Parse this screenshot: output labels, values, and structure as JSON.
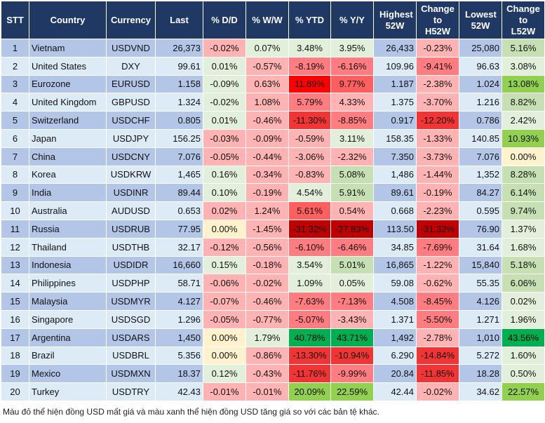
{
  "headers": [
    "STT",
    "Country",
    "Currency",
    "Last",
    "% D/D",
    "% W/W",
    "% YTD",
    "% Y/Y",
    "Highest 52W",
    "Change to H52W",
    "Lowest 52W",
    "Change to L52W"
  ],
  "zebra": {
    "odd": "#b4c6e7",
    "even": "#ddebf7"
  },
  "palette": {
    "p": "#ffb3b3",
    "g": "#e2efda",
    "G": "#c6e0b4",
    "L": "#92d050",
    "D": "#00b050",
    "y": "#fff2cc",
    "s": "#ff7c80",
    "m": "#ff5f5f",
    "r": "#f23434",
    "X": "#ff0000",
    "K": "#c00000"
  },
  "rows": [
    {
      "stt": "1",
      "country": "Vietnam",
      "currency": "USDVND",
      "last": "26,373",
      "dd": "-0.02%",
      "ww": "0.07%",
      "ytd": "3.48%",
      "yy": "3.95%",
      "high": "26,433",
      "ch_high": "-0.23%",
      "low": "25,080",
      "ch_low": "5.16%",
      "colors": [
        "p",
        "g",
        "g",
        "g",
        "p",
        "G"
      ]
    },
    {
      "stt": "2",
      "country": "United States",
      "currency": "DXY",
      "last": "99.61",
      "dd": "0.01%",
      "ww": "-0.57%",
      "ytd": "-8.19%",
      "yy": "-6.16%",
      "high": "109.96",
      "ch_high": "-9.41%",
      "low": "96.63",
      "ch_low": "3.08%",
      "colors": [
        "g",
        "p",
        "s",
        "s",
        "s",
        "g"
      ]
    },
    {
      "stt": "3",
      "country": "Eurozone",
      "currency": "EURUSD",
      "last": "1.158",
      "dd": "-0.09%",
      "ww": "0.63%",
      "ytd": "11.89%",
      "yy": "9.77%",
      "high": "1.187",
      "ch_high": "-2.38%",
      "low": "1.024",
      "ch_low": "13.08%",
      "colors": [
        "g",
        "p",
        "X",
        "m",
        "p",
        "L"
      ]
    },
    {
      "stt": "4",
      "country": "United Kingdom",
      "currency": "GBPUSD",
      "last": "1.324",
      "dd": "-0.02%",
      "ww": "1.08%",
      "ytd": "5.79%",
      "yy": "4.33%",
      "high": "1.375",
      "ch_high": "-3.70%",
      "low": "1.216",
      "ch_low": "8.82%",
      "colors": [
        "g",
        "p",
        "s",
        "p",
        "p",
        "G"
      ]
    },
    {
      "stt": "5",
      "country": "Switzerland",
      "currency": "USDCHF",
      "last": "0.805",
      "dd": "0.01%",
      "ww": "-0.46%",
      "ytd": "-11.30%",
      "yy": "-8.85%",
      "high": "0.917",
      "ch_high": "-12.20%",
      "low": "0.786",
      "ch_low": "2.42%",
      "colors": [
        "g",
        "p",
        "r",
        "s",
        "r",
        "g"
      ]
    },
    {
      "stt": "6",
      "country": "Japan",
      "currency": "USDJPY",
      "last": "156.25",
      "dd": "-0.03%",
      "ww": "-0.09%",
      "ytd": "-0.59%",
      "yy": "3.11%",
      "high": "158.35",
      "ch_high": "-1.33%",
      "low": "140.85",
      "ch_low": "10.93%",
      "colors": [
        "p",
        "p",
        "p",
        "g",
        "p",
        "L"
      ]
    },
    {
      "stt": "7",
      "country": "China",
      "currency": "USDCNY",
      "last": "7.076",
      "dd": "-0.05%",
      "ww": "-0.44%",
      "ytd": "-3.06%",
      "yy": "-2.32%",
      "high": "7.350",
      "ch_high": "-3.73%",
      "low": "7.076",
      "ch_low": "0.00%",
      "colors": [
        "p",
        "p",
        "p",
        "p",
        "p",
        "y"
      ]
    },
    {
      "stt": "8",
      "country": "Korea",
      "currency": "USDKRW",
      "last": "1,465",
      "dd": "0.16%",
      "ww": "-0.34%",
      "ytd": "-0.83%",
      "yy": "5.08%",
      "high": "1,486",
      "ch_high": "-1.44%",
      "low": "1,352",
      "ch_low": "8.28%",
      "colors": [
        "g",
        "p",
        "p",
        "G",
        "p",
        "G"
      ]
    },
    {
      "stt": "9",
      "country": "India",
      "currency": "USDINR",
      "last": "89.44",
      "dd": "0.10%",
      "ww": "-0.19%",
      "ytd": "4.54%",
      "yy": "5.91%",
      "high": "89.61",
      "ch_high": "-0.19%",
      "low": "84.27",
      "ch_low": "6.14%",
      "colors": [
        "g",
        "p",
        "g",
        "G",
        "p",
        "G"
      ]
    },
    {
      "stt": "10",
      "country": "Australia",
      "currency": "AUDUSD",
      "last": "0.653",
      "dd": "0.02%",
      "ww": "1.24%",
      "ytd": "5.61%",
      "yy": "0.54%",
      "high": "0.668",
      "ch_high": "-2.23%",
      "low": "0.595",
      "ch_low": "9.74%",
      "colors": [
        "p",
        "p",
        "m",
        "p",
        "p",
        "G"
      ]
    },
    {
      "stt": "11",
      "country": "Russia",
      "currency": "USDRUB",
      "last": "77.95",
      "dd": "0.00%",
      "ww": "-1.45%",
      "ytd": "-31.32%",
      "yy": "-27.83%",
      "high": "113.50",
      "ch_high": "-31.32%",
      "low": "76.90",
      "ch_low": "1.37%",
      "colors": [
        "y",
        "p",
        "K",
        "K",
        "K",
        "g"
      ]
    },
    {
      "stt": "12",
      "country": "Thailand",
      "currency": "USDTHB",
      "last": "32.17",
      "dd": "-0.12%",
      "ww": "-0.56%",
      "ytd": "-6.10%",
      "yy": "-6.46%",
      "high": "34.85",
      "ch_high": "-7.69%",
      "low": "31.64",
      "ch_low": "1.68%",
      "colors": [
        "p",
        "p",
        "s",
        "s",
        "s",
        "g"
      ]
    },
    {
      "stt": "13",
      "country": "Indonesia",
      "currency": "USDIDR",
      "last": "16,660",
      "dd": "0.15%",
      "ww": "-0.18%",
      "ytd": "3.54%",
      "yy": "5.01%",
      "high": "16,865",
      "ch_high": "-1.22%",
      "low": "15,840",
      "ch_low": "5.18%",
      "colors": [
        "g",
        "p",
        "g",
        "G",
        "p",
        "G"
      ]
    },
    {
      "stt": "14",
      "country": "Philippines",
      "currency": "USDPHP",
      "last": "58.71",
      "dd": "-0.06%",
      "ww": "-0.02%",
      "ytd": "1.09%",
      "yy": "0.05%",
      "high": "59.08",
      "ch_high": "-0.62%",
      "low": "55.35",
      "ch_low": "6.06%",
      "colors": [
        "p",
        "p",
        "g",
        "g",
        "p",
        "G"
      ]
    },
    {
      "stt": "15",
      "country": "Malaysia",
      "currency": "USDMYR",
      "last": "4.127",
      "dd": "-0.07%",
      "ww": "-0.46%",
      "ytd": "-7.63%",
      "yy": "-7.13%",
      "high": "4.508",
      "ch_high": "-8.45%",
      "low": "4.126",
      "ch_low": "0.02%",
      "colors": [
        "p",
        "p",
        "s",
        "s",
        "s",
        "g"
      ]
    },
    {
      "stt": "16",
      "country": "Singapore",
      "currency": "USDSGD",
      "last": "1.296",
      "dd": "-0.05%",
      "ww": "-0.77%",
      "ytd": "-5.07%",
      "yy": "-3.43%",
      "high": "1.371",
      "ch_high": "-5.50%",
      "low": "1.271",
      "ch_low": "1.96%",
      "colors": [
        "p",
        "p",
        "s",
        "p",
        "s",
        "g"
      ]
    },
    {
      "stt": "17",
      "country": "Argentina",
      "currency": "USDARS",
      "last": "1,450",
      "dd": "0.00%",
      "ww": "1.79%",
      "ytd": "40.78%",
      "yy": "43.71%",
      "high": "1,492",
      "ch_high": "-2.78%",
      "low": "1,010",
      "ch_low": "43.56%",
      "colors": [
        "y",
        "g",
        "D",
        "D",
        "p",
        "D"
      ]
    },
    {
      "stt": "18",
      "country": "Brazil",
      "currency": "USDBRL",
      "last": "5.356",
      "dd": "0.00%",
      "ww": "-0.86%",
      "ytd": "-13.30%",
      "yy": "-10.94%",
      "high": "6.290",
      "ch_high": "-14.84%",
      "low": "5.272",
      "ch_low": "1.60%",
      "colors": [
        "y",
        "p",
        "r",
        "r",
        "r",
        "g"
      ]
    },
    {
      "stt": "19",
      "country": "Mexico",
      "currency": "USDMXN",
      "last": "18.37",
      "dd": "0.12%",
      "ww": "-0.43%",
      "ytd": "-11.76%",
      "yy": "-9.99%",
      "high": "20.84",
      "ch_high": "-11.85%",
      "low": "18.28",
      "ch_low": "0.50%",
      "colors": [
        "g",
        "p",
        "r",
        "s",
        "r",
        "g"
      ]
    },
    {
      "stt": "20",
      "country": "Turkey",
      "currency": "USDTRY",
      "last": "42.43",
      "dd": "-0.01%",
      "ww": "-0.01%",
      "ytd": "20.09%",
      "yy": "22.59%",
      "high": "42.44",
      "ch_high": "-0.02%",
      "low": "34.62",
      "ch_low": "22.57%",
      "colors": [
        "p",
        "p",
        "L",
        "L",
        "p",
        "L"
      ]
    }
  ],
  "footer": "Màu đỏ thể hiện đồng USD mất giá và màu xanh thể hiện đồng USD tăng giá so với các bản tệ khác."
}
